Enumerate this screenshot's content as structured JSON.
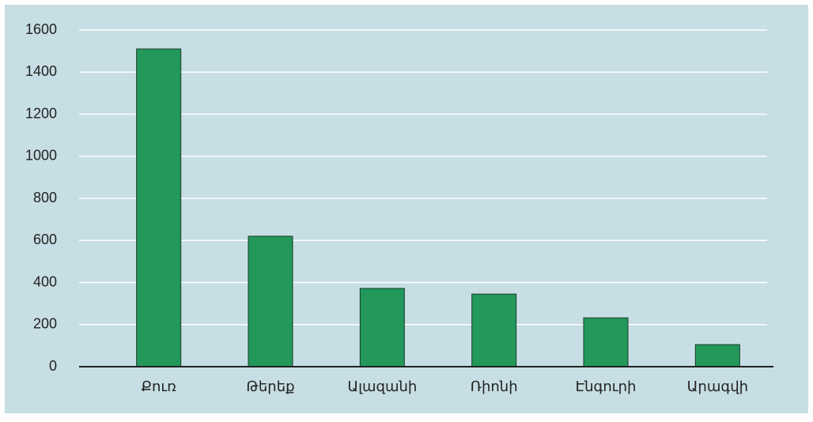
{
  "chart_data": {
    "type": "bar",
    "categories": [
      "Քուռ",
      "Թերեք",
      "Ալազանի",
      "Ռիոնի",
      "Էնգուրի",
      "Արագվի"
    ],
    "values": [
      1510,
      620,
      372,
      345,
      232,
      105
    ],
    "color": "#22985a",
    "ylim": [
      0,
      1600
    ],
    "yticks": [
      0,
      200,
      400,
      600,
      800,
      1000,
      1200,
      1400,
      1600
    ],
    "grid": true
  }
}
